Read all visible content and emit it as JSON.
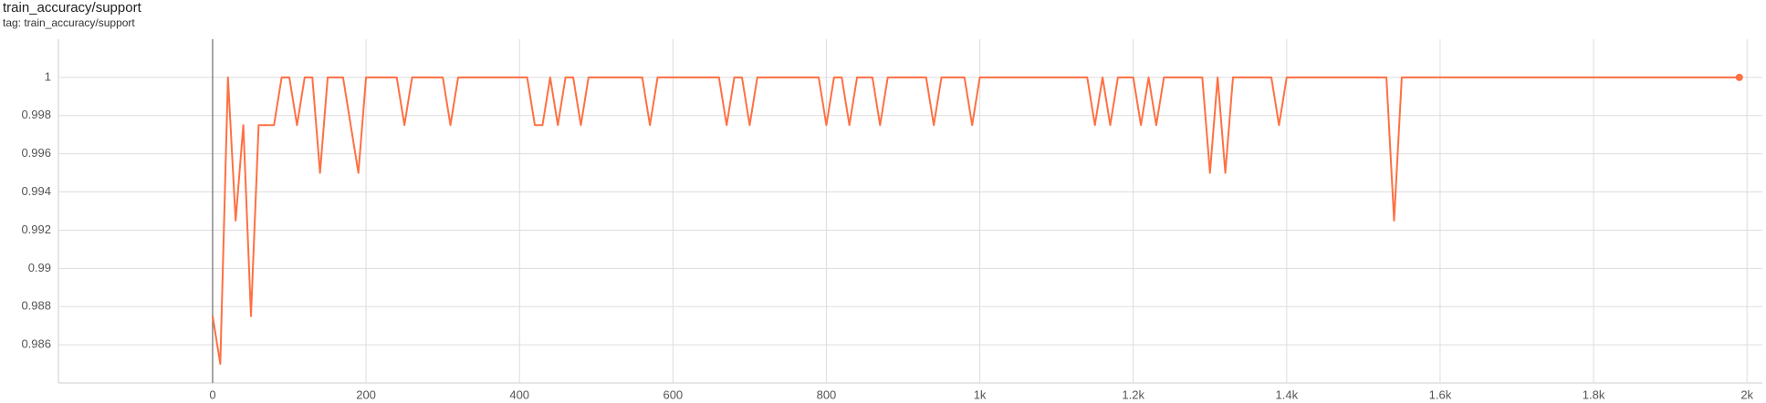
{
  "chart_data": {
    "type": "line",
    "title": "train_accuracy/support",
    "subtitle": "tag: train_accuracy/support",
    "x": [
      0,
      10,
      20,
      30,
      40,
      50,
      60,
      70,
      80,
      90,
      100,
      110,
      120,
      130,
      140,
      150,
      160,
      170,
      180,
      190,
      200,
      210,
      220,
      230,
      240,
      250,
      260,
      270,
      280,
      290,
      300,
      310,
      320,
      330,
      340,
      350,
      360,
      370,
      380,
      390,
      400,
      410,
      420,
      430,
      440,
      450,
      460,
      470,
      480,
      490,
      500,
      510,
      520,
      530,
      540,
      550,
      560,
      570,
      580,
      590,
      600,
      610,
      620,
      630,
      640,
      650,
      660,
      670,
      680,
      690,
      700,
      710,
      720,
      730,
      740,
      750,
      760,
      770,
      780,
      790,
      800,
      810,
      820,
      830,
      840,
      850,
      860,
      870,
      880,
      890,
      900,
      910,
      920,
      930,
      940,
      950,
      960,
      970,
      980,
      990,
      1000,
      1010,
      1020,
      1030,
      1040,
      1050,
      1060,
      1070,
      1080,
      1090,
      1100,
      1110,
      1120,
      1130,
      1140,
      1150,
      1160,
      1170,
      1180,
      1190,
      1200,
      1210,
      1220,
      1230,
      1240,
      1250,
      1260,
      1270,
      1280,
      1290,
      1300,
      1310,
      1320,
      1330,
      1340,
      1350,
      1360,
      1370,
      1380,
      1390,
      1400,
      1410,
      1420,
      1430,
      1440,
      1450,
      1460,
      1470,
      1480,
      1490,
      1500,
      1510,
      1520,
      1530,
      1540,
      1550,
      1560,
      1570,
      1580,
      1590,
      1600,
      1610,
      1620,
      1630,
      1640,
      1650,
      1660,
      1670,
      1680,
      1690,
      1700,
      1710,
      1720,
      1730,
      1740,
      1750,
      1760,
      1770,
      1780,
      1790,
      1800,
      1810,
      1820,
      1830,
      1840,
      1850,
      1860,
      1870,
      1880,
      1890,
      1900,
      1910,
      1920,
      1930,
      1940,
      1950,
      1960,
      1970,
      1980,
      1990
    ],
    "series": [
      {
        "color": "#ff7043",
        "values": [
          0.9875,
          0.985,
          1,
          0.9925,
          0.9975,
          0.9875,
          0.9975,
          0.9975,
          0.9975,
          1,
          1,
          0.9975,
          1,
          1,
          0.995,
          1,
          1,
          1,
          0.9975,
          0.995,
          1,
          1,
          1,
          1,
          1,
          0.9975,
          1,
          1,
          1,
          1,
          1,
          0.9975,
          1,
          1,
          1,
          1,
          1,
          1,
          1,
          1,
          1,
          1,
          0.9975,
          0.9975,
          1,
          0.9975,
          1,
          1,
          0.9975,
          1,
          1,
          1,
          1,
          1,
          1,
          1,
          1,
          0.9975,
          1,
          1,
          1,
          1,
          1,
          1,
          1,
          1,
          1,
          0.9975,
          1,
          1,
          0.9975,
          1,
          1,
          1,
          1,
          1,
          1,
          1,
          1,
          1,
          0.9975,
          1,
          1,
          0.9975,
          1,
          1,
          1,
          0.9975,
          1,
          1,
          1,
          1,
          1,
          1,
          0.9975,
          1,
          1,
          1,
          1,
          0.9975,
          1,
          1,
          1,
          1,
          1,
          1,
          1,
          1,
          1,
          1,
          1,
          1,
          1,
          1,
          1,
          0.9975,
          1,
          0.9975,
          1,
          1,
          1,
          0.9975,
          1,
          0.9975,
          1,
          1,
          1,
          1,
          1,
          1,
          0.995,
          1,
          0.995,
          1,
          1,
          1,
          1,
          1,
          1,
          0.9975,
          1,
          1,
          1,
          1,
          1,
          1,
          1,
          1,
          1,
          1,
          1,
          1,
          1,
          1,
          0.9925,
          1,
          1,
          1,
          1,
          1,
          1,
          1,
          1,
          1,
          1,
          1,
          1,
          1,
          1,
          1,
          1,
          1,
          1,
          1,
          1,
          1,
          1,
          1,
          1,
          1,
          1,
          1,
          1,
          1,
          1,
          1,
          1,
          1,
          1,
          1,
          1,
          1,
          1,
          1,
          1,
          1,
          1,
          1,
          1,
          1
        ]
      }
    ],
    "xlim": [
      -201,
      2020
    ],
    "ylim": [
      0.984,
      1.002
    ],
    "xticks": [
      0,
      200,
      400,
      600,
      800,
      {
        "value": 1000,
        "label": "1k"
      },
      {
        "value": 1200,
        "label": "1.2k"
      },
      {
        "value": 1400,
        "label": "1.4k"
      },
      {
        "value": 1600,
        "label": "1.6k"
      },
      {
        "value": 1800,
        "label": "1.8k"
      },
      {
        "value": 2000,
        "label": "2k"
      }
    ],
    "yticks": [
      0.986,
      0.988,
      0.99,
      0.992,
      0.994,
      0.996,
      0.998,
      1
    ],
    "grid": true
  }
}
